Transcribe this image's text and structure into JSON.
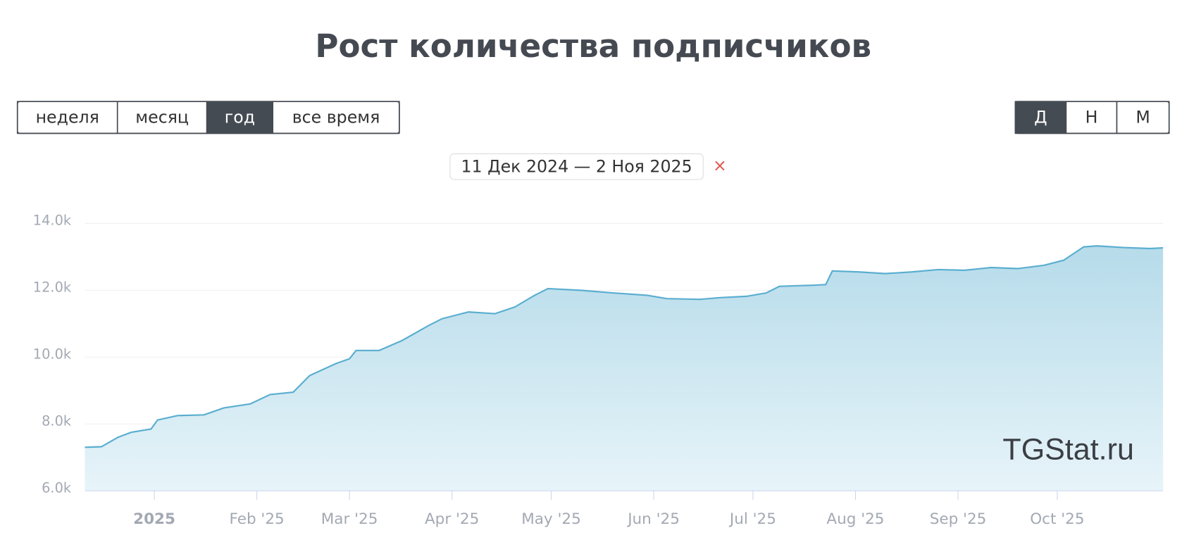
{
  "controls": {
    "periods": [
      "неделя",
      "месяц",
      "год",
      "все время"
    ],
    "active_period": 2,
    "granularity": [
      "Д",
      "Н",
      "М"
    ],
    "active_granularity": 0,
    "date_range": "11 Дек 2024 — 2 Ноя 2025",
    "clear": "×"
  },
  "watermark": "TGStat.ru",
  "chart_data": {
    "type": "area",
    "title": "Рост количества подписчиков",
    "color": "#5aaed0",
    "x": [
      0,
      5,
      10,
      14,
      20,
      22,
      28,
      36,
      42,
      50,
      56,
      63,
      68,
      76,
      80,
      82,
      89,
      96,
      104,
      108,
      116,
      124,
      130,
      136,
      140,
      150,
      160,
      170,
      176,
      186,
      192,
      200,
      206,
      210,
      220,
      224,
      226,
      234,
      242,
      250,
      258,
      266,
      274,
      282,
      290,
      296,
      302,
      306,
      314,
      322,
      326
    ],
    "values": [
      7300,
      7320,
      7600,
      7750,
      7850,
      8120,
      8250,
      8270,
      8480,
      8600,
      8880,
      8950,
      9450,
      9810,
      9950,
      10200,
      10200,
      10500,
      10950,
      11150,
      11350,
      11300,
      11500,
      11850,
      12050,
      12000,
      11920,
      11850,
      11750,
      11730,
      11780,
      11820,
      11920,
      12120,
      12150,
      12170,
      12580,
      12550,
      12500,
      12550,
      12620,
      12600,
      12680,
      12650,
      12750,
      12900,
      13300,
      13330,
      13280,
      13250,
      13270
    ],
    "xlim": [
      0,
      326
    ],
    "xticks": [
      {
        "value": 21,
        "label": "2025"
      },
      {
        "value": 52,
        "label": "Feb '25"
      },
      {
        "value": 80,
        "label": "Mar '25"
      },
      {
        "value": 111,
        "label": "Apr '25"
      },
      {
        "value": 141,
        "label": "May '25"
      },
      {
        "value": 172,
        "label": "Jun '25"
      },
      {
        "value": 202,
        "label": "Jul '25"
      },
      {
        "value": 233,
        "label": "Aug '25"
      },
      {
        "value": 264,
        "label": "Sep '25"
      },
      {
        "value": 294,
        "label": "Oct '25"
      }
    ],
    "ylim": [
      6000,
      14000
    ],
    "yticks": [
      {
        "value": 6000,
        "label": "6.0k"
      },
      {
        "value": 8000,
        "label": "8.0k"
      },
      {
        "value": 10000,
        "label": "10.0k"
      },
      {
        "value": 12000,
        "label": "12.0k"
      },
      {
        "value": 14000,
        "label": "14.0k"
      }
    ],
    "grid": true
  }
}
